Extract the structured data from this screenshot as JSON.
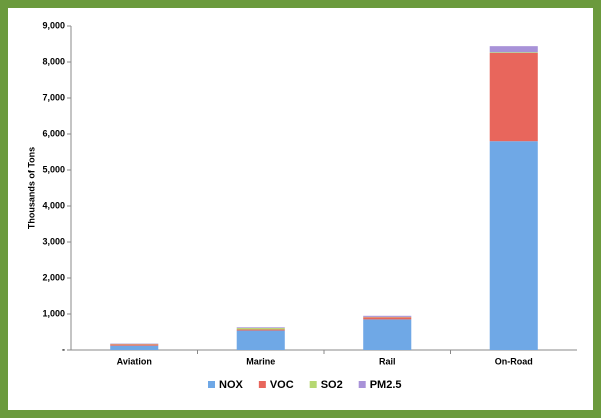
{
  "chart_data": {
    "type": "stacked_bar",
    "y_label": "Thousands of Tons",
    "categories": [
      "Aviation",
      "Marine",
      "Rail",
      "On-Road"
    ],
    "series": [
      {
        "name": "NOX",
        "color": "#6fa8e6",
        "values": [
          120,
          540,
          850,
          5800
        ]
      },
      {
        "name": "VOC",
        "color": "#e8665c",
        "values": [
          40,
          30,
          60,
          2450
        ]
      },
      {
        "name": "SO2",
        "color": "#b6d872",
        "values": [
          10,
          40,
          10,
          20
        ]
      },
      {
        "name": "PM2.5",
        "color": "#a892d8",
        "values": [
          10,
          20,
          30,
          170
        ]
      }
    ],
    "ylim": [
      0,
      9000
    ],
    "yticks": [
      {
        "value": 0,
        "label": "-"
      },
      {
        "value": 1000,
        "label": "1,000"
      },
      {
        "value": 2000,
        "label": "2,000"
      },
      {
        "value": 3000,
        "label": "3,000"
      },
      {
        "value": 4000,
        "label": "4,000"
      },
      {
        "value": 5000,
        "label": "5,000"
      },
      {
        "value": 6000,
        "label": "6,000"
      },
      {
        "value": 7000,
        "label": "7,000"
      },
      {
        "value": 8000,
        "label": "8,000"
      },
      {
        "value": 9000,
        "label": "9,000"
      }
    ],
    "legend": "bottom"
  }
}
